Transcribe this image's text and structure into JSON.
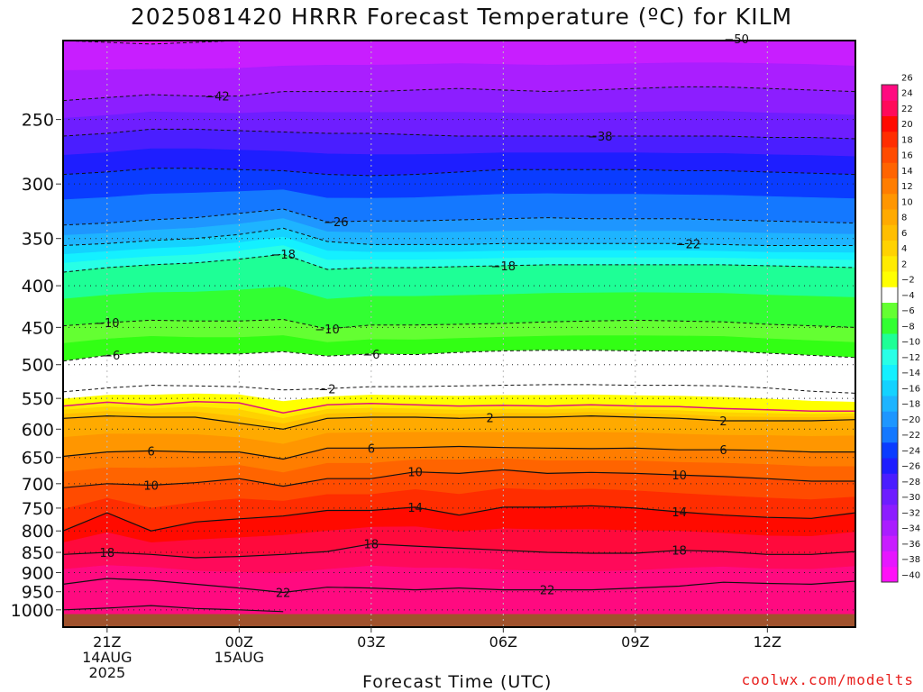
{
  "title": "2025081420 HRRR Forecast Temperature (ºC) for KILM",
  "credit": "coolwx.com/modelts",
  "chart_data": {
    "type": "heatmap",
    "title": "2025081420 HRRR Forecast Temperature (ºC) for KILM",
    "xlabel": "Forecast Time (UTC)",
    "ylabel": "",
    "x_ticks": [
      {
        "hour": 1,
        "lines": [
          "21Z",
          "14AUG",
          "2025"
        ]
      },
      {
        "hour": 4,
        "lines": [
          "00Z",
          "15AUG"
        ]
      },
      {
        "hour": 7,
        "lines": [
          "03Z"
        ]
      },
      {
        "hour": 10,
        "lines": [
          "06Z"
        ]
      },
      {
        "hour": 13,
        "lines": [
          "09Z"
        ]
      },
      {
        "hour": 16,
        "lines": [
          "12Z"
        ]
      }
    ],
    "x_range_hours": [
      0,
      18
    ],
    "y_ticks": [
      250,
      300,
      350,
      400,
      450,
      500,
      550,
      600,
      650,
      700,
      750,
      800,
      850,
      900,
      950,
      1000
    ],
    "y_range": [
      200,
      1050
    ],
    "y_scale": "log-pressure",
    "colorbar": {
      "levels": [
        -40,
        -38,
        -36,
        -34,
        -32,
        -30,
        -28,
        -26,
        -24,
        -22,
        -20,
        -18,
        -16,
        -14,
        -12,
        -10,
        -8,
        -6,
        -4,
        -2,
        2,
        4,
        6,
        8,
        10,
        12,
        14,
        16,
        18,
        20,
        22,
        24,
        26
      ],
      "colors": [
        "#ff10f8",
        "#e616ff",
        "#c81eff",
        "#aa1eff",
        "#8c1eff",
        "#6e1eff",
        "#4a1eff",
        "#1e1eff",
        "#0a3cff",
        "#1478ff",
        "#1e96ff",
        "#1eb4ff",
        "#14d2ff",
        "#14f0ff",
        "#28ffe6",
        "#1eff96",
        "#32ff32",
        "#64ff32",
        "#ffffff",
        "#ffff00",
        "#ffeb00",
        "#ffd200",
        "#ffbe00",
        "#ffaa00",
        "#ff9600",
        "#ff7d00",
        "#ff6400",
        "#ff4b00",
        "#ff2d00",
        "#ff0a00",
        "#ff0a5a",
        "#ff0a80"
      ]
    },
    "contours_dashed": [
      {
        "label": "-50",
        "y": [
          200,
          201,
          202,
          201,
          200,
          200,
          199,
          199,
          199,
          199,
          199,
          199,
          199,
          199,
          199,
          199,
          199,
          199,
          200
        ]
      },
      {
        "label": "-42",
        "y": [
          237,
          235,
          233,
          234,
          234,
          231,
          231,
          231,
          230,
          229,
          230,
          231,
          230,
          229,
          228,
          228,
          229,
          230,
          231
        ]
      },
      {
        "label": "-38",
        "y": [
          262,
          260,
          257,
          257,
          258,
          259,
          260,
          260,
          261,
          262,
          262,
          262,
          262,
          262,
          262,
          262,
          263,
          263,
          264
        ]
      },
      {
        "label": "-34",
        "y": [
          292,
          290,
          287,
          287,
          288,
          289,
          292,
          293,
          292,
          290,
          288,
          288,
          288,
          288,
          289,
          289,
          290,
          291,
          292
        ]
      },
      {
        "label": "-26",
        "y": [
          337,
          335,
          332,
          330,
          326,
          322,
          334,
          333,
          333,
          332,
          331,
          330,
          331,
          331,
          331,
          332,
          333,
          334,
          335
        ]
      },
      {
        "label": "-22",
        "y": [
          357,
          355,
          352,
          350,
          346,
          340,
          353,
          356,
          356,
          356,
          355,
          355,
          355,
          355,
          355,
          356,
          357,
          357,
          357
        ]
      },
      {
        "label": "-18",
        "y": [
          385,
          380,
          377,
          375,
          371,
          366,
          382,
          380,
          380,
          379,
          378,
          377,
          377,
          377,
          377,
          377,
          378,
          379,
          380
        ]
      },
      {
        "label": "-10",
        "y": [
          448,
          444,
          441,
          442,
          442,
          440,
          452,
          447,
          447,
          446,
          445,
          443,
          442,
          441,
          442,
          443,
          446,
          448,
          450
        ]
      },
      {
        "label": "-6",
        "y": [
          495,
          487,
          483,
          485,
          485,
          482,
          488,
          485,
          486,
          483,
          481,
          480,
          480,
          481,
          481,
          481,
          484,
          487,
          490
        ]
      },
      {
        "label": "-2",
        "y": [
          540,
          534,
          530,
          531,
          532,
          537,
          535,
          532,
          532,
          531,
          530,
          529,
          529,
          530,
          530,
          531,
          534,
          539,
          542
        ]
      }
    ],
    "contours_solid": [
      {
        "label": "0",
        "y": [
          562,
          556,
          560,
          555,
          557,
          573,
          560,
          558,
          560,
          562,
          561,
          562,
          560,
          562,
          563,
          566,
          568,
          570,
          570
        ]
      },
      {
        "label": "2",
        "y": [
          582,
          578,
          580,
          580,
          590,
          600,
          582,
          580,
          580,
          582,
          580,
          580,
          578,
          580,
          582,
          586,
          586,
          586,
          584
        ]
      },
      {
        "label": "6",
        "y": [
          648,
          640,
          638,
          640,
          640,
          653,
          633,
          633,
          632,
          630,
          632,
          633,
          634,
          633,
          636,
          636,
          637,
          640,
          640
        ]
      },
      {
        "label": "10",
        "y": [
          708,
          700,
          703,
          698,
          690,
          705,
          690,
          690,
          677,
          680,
          673,
          680,
          678,
          680,
          683,
          686,
          690,
          695,
          695
        ]
      },
      {
        "label": "14",
        "y": [
          800,
          760,
          800,
          780,
          773,
          767,
          755,
          755,
          748,
          765,
          748,
          748,
          745,
          750,
          758,
          765,
          770,
          772,
          760
        ]
      },
      {
        "label": "18",
        "y": [
          855,
          850,
          855,
          863,
          860,
          855,
          848,
          830,
          835,
          840,
          845,
          850,
          852,
          852,
          845,
          848,
          855,
          855,
          848
        ]
      },
      {
        "label": "22",
        "y": [
          930,
          915,
          920,
          930,
          940,
          952,
          938,
          940,
          945,
          940,
          945,
          945,
          945,
          940,
          935,
          925,
          928,
          930,
          922
        ]
      },
      {
        "label": "26",
        "y": [
          1000,
          995,
          988,
          996,
          1000,
          1005
        ]
      }
    ],
    "surface": "ground-shaded",
    "grid": "dotted"
  }
}
